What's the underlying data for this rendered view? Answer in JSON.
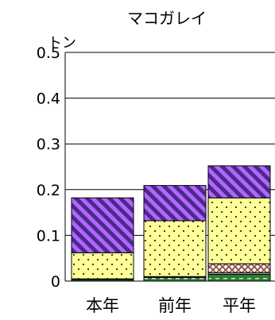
{
  "chart_data": {
    "type": "bar",
    "stacked": true,
    "title": "マコガレイ",
    "ylabel": "トン",
    "xlabel": "",
    "categories": [
      "本年",
      "前年",
      "平年"
    ],
    "ylim": [
      0,
      0.5
    ],
    "yticks": [
      "0",
      "0.1",
      "0.2",
      "0.3",
      "0.4",
      "0.5"
    ],
    "grid": true,
    "legend": "none",
    "series": [
      {
        "values": [
          0.003,
          0.008,
          0.015
        ],
        "color": "#2e7d32",
        "pattern": "dash"
      },
      {
        "values": [
          0.002,
          0.002,
          0.003
        ],
        "color": "#c0504d",
        "pattern": "dots"
      },
      {
        "values": [
          0.0,
          0.0,
          0.02
        ],
        "color": "#8e5a4a",
        "pattern": "crosshatch"
      },
      {
        "values": [
          0.057,
          0.122,
          0.144
        ],
        "color": "#ffff99",
        "pattern": "dots"
      },
      {
        "values": [
          0.12,
          0.077,
          0.07
        ],
        "color": "#b266ff",
        "pattern": "diagonal"
      }
    ]
  }
}
